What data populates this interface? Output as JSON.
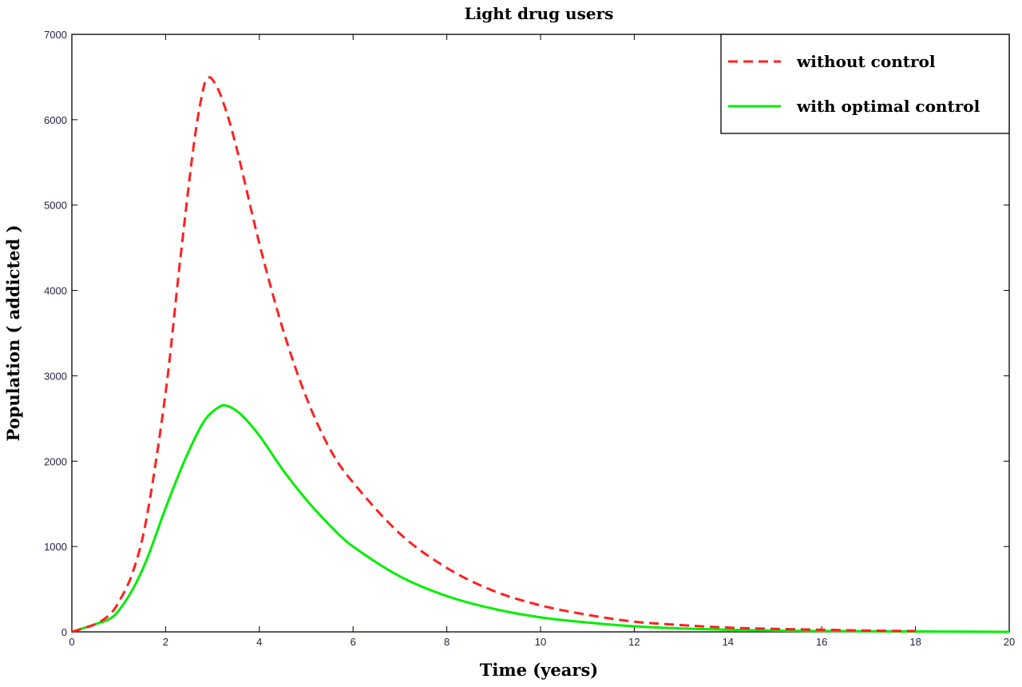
{
  "chart_data": {
    "type": "line",
    "title": "Light drug users",
    "xlabel": "Time (years)",
    "ylabel": "Population ( addicted )",
    "xlim": [
      0,
      20
    ],
    "ylim": [
      0,
      7000
    ],
    "x_ticks": [
      "0",
      "2",
      "4",
      "6",
      "8",
      "10",
      "12",
      "14",
      "16",
      "18",
      "20"
    ],
    "y_ticks": [
      "0",
      "1000",
      "2000",
      "3000",
      "4000",
      "5000",
      "6000",
      "7000"
    ],
    "grid": false,
    "legend_position": "top-right",
    "series": [
      {
        "name": "without control",
        "color": "#ff2020",
        "line_style": "dashed",
        "x": [
          0,
          0.5,
          0.8,
          1,
          1.3,
          1.6,
          2,
          2.3,
          2.6,
          2.8,
          2.9,
          3,
          3.2,
          3.5,
          4,
          4.5,
          5,
          5.5,
          6,
          7,
          8,
          9,
          10,
          11,
          12,
          13,
          14,
          15,
          16,
          17,
          18
        ],
        "y": [
          0,
          90,
          200,
          350,
          700,
          1350,
          2800,
          4300,
          5700,
          6350,
          6480,
          6470,
          6250,
          5700,
          4550,
          3550,
          2750,
          2150,
          1750,
          1150,
          750,
          480,
          310,
          200,
          120,
          80,
          50,
          35,
          25,
          15,
          10
        ]
      },
      {
        "name": "with optimal control",
        "color": "#00ee00",
        "line_style": "solid",
        "x": [
          0,
          0.5,
          0.8,
          1,
          1.3,
          1.6,
          2,
          2.4,
          2.8,
          3.1,
          3.3,
          3.6,
          4,
          4.5,
          5,
          5.5,
          6,
          7,
          8,
          9,
          10,
          11,
          12,
          13,
          14,
          15,
          16,
          18,
          20
        ],
        "y": [
          0,
          90,
          150,
          250,
          500,
          850,
          1450,
          2000,
          2450,
          2620,
          2650,
          2550,
          2300,
          1900,
          1550,
          1250,
          1000,
          650,
          420,
          270,
          170,
          110,
          65,
          40,
          25,
          15,
          10,
          5,
          0
        ]
      }
    ]
  }
}
